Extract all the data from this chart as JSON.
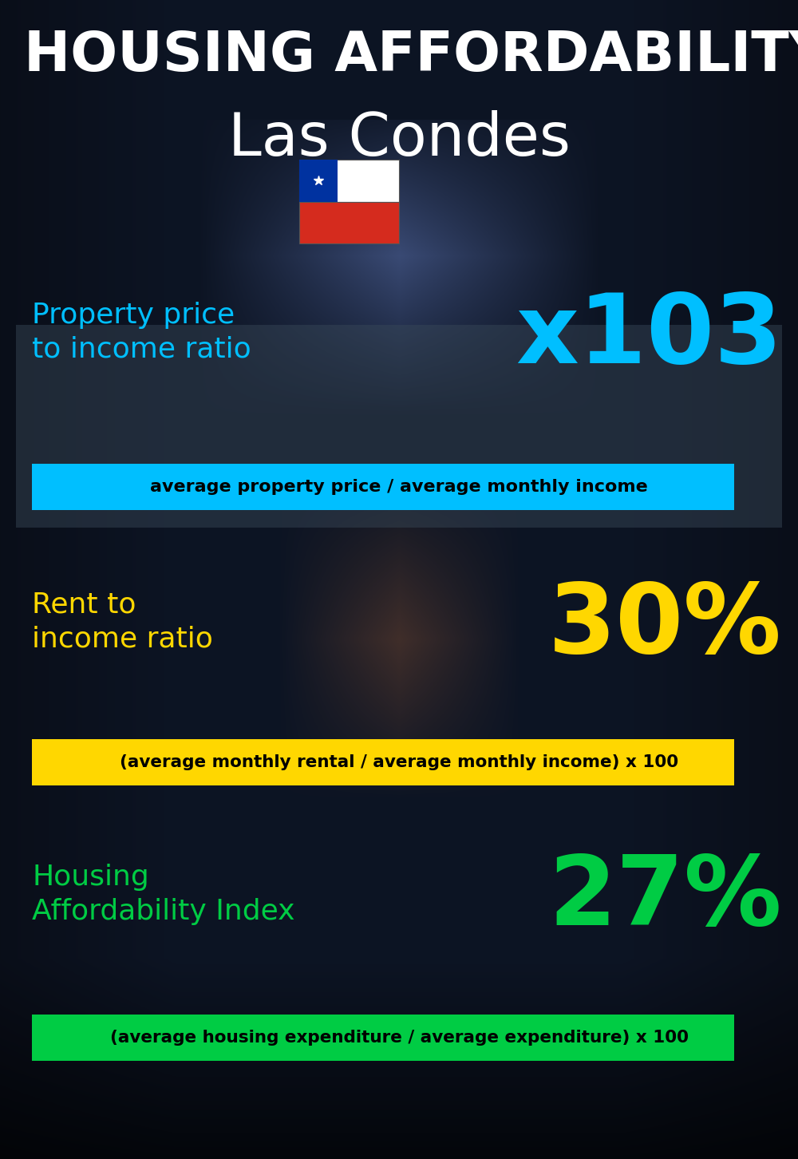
{
  "title_line1": "HOUSING AFFORDABILITY",
  "title_line2": "Las Condes",
  "bg_color": "#080e1a",
  "title1_color": "#ffffff",
  "title2_color": "#ffffff",
  "section1_label": "Property price\nto income ratio",
  "section1_value": "x103",
  "section1_label_color": "#00bfff",
  "section1_value_color": "#00bfff",
  "section1_banner_text": "average property price / average monthly income",
  "section1_banner_bg": "#00bfff",
  "section1_banner_text_color": "#000000",
  "section2_label": "Rent to\nincome ratio",
  "section2_value": "30%",
  "section2_label_color": "#ffd700",
  "section2_value_color": "#ffd700",
  "section2_banner_text": "(average monthly rental / average monthly income) x 100",
  "section2_banner_bg": "#ffd700",
  "section2_banner_text_color": "#000000",
  "section3_label": "Housing\nAffordability Index",
  "section3_value": "27%",
  "section3_label_color": "#00cc44",
  "section3_value_color": "#00cc44",
  "section3_banner_text": "(average housing expenditure / average expenditure) x 100",
  "section3_banner_bg": "#00cc44",
  "section3_banner_text_color": "#000000",
  "figsize": [
    10.0,
    14.52
  ],
  "dpi": 100
}
